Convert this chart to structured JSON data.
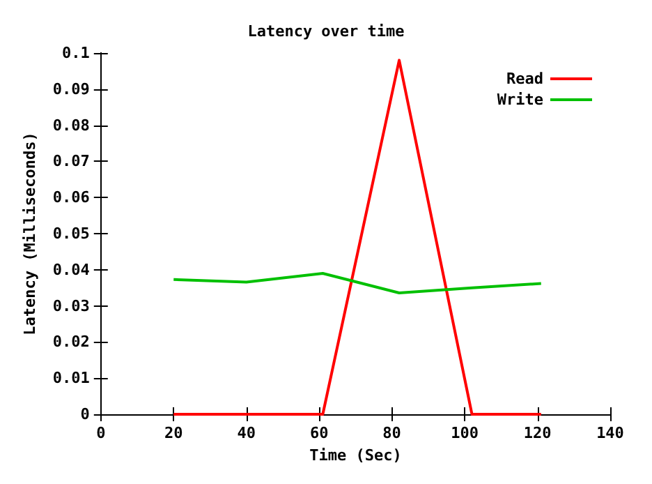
{
  "chart_data": {
    "type": "line",
    "title": "Latency over time",
    "xlabel": "Time (Sec)",
    "ylabel": "Latency (Milliseconds)",
    "x": [
      20,
      40,
      61,
      82,
      102,
      121
    ],
    "series": [
      {
        "name": "Read",
        "color": "#ff0000",
        "values": [
          0,
          0,
          0,
          0.098,
          0,
          0
        ]
      },
      {
        "name": "Write",
        "color": "#00c000",
        "values": [
          0.0373,
          0.0366,
          0.039,
          0.0336,
          0.035,
          0.0362
        ]
      }
    ],
    "xlim": [
      0,
      140
    ],
    "xticks": [
      0,
      20,
      40,
      60,
      80,
      100,
      120,
      140
    ],
    "ylim": [
      0,
      0.1
    ],
    "yticks": [
      0,
      0.01,
      0.02,
      0.03,
      0.04,
      0.05,
      0.06,
      0.07,
      0.08,
      0.09,
      0.1
    ],
    "grid": false,
    "legend": "top right",
    "marker": "none",
    "line_style": "solid"
  }
}
